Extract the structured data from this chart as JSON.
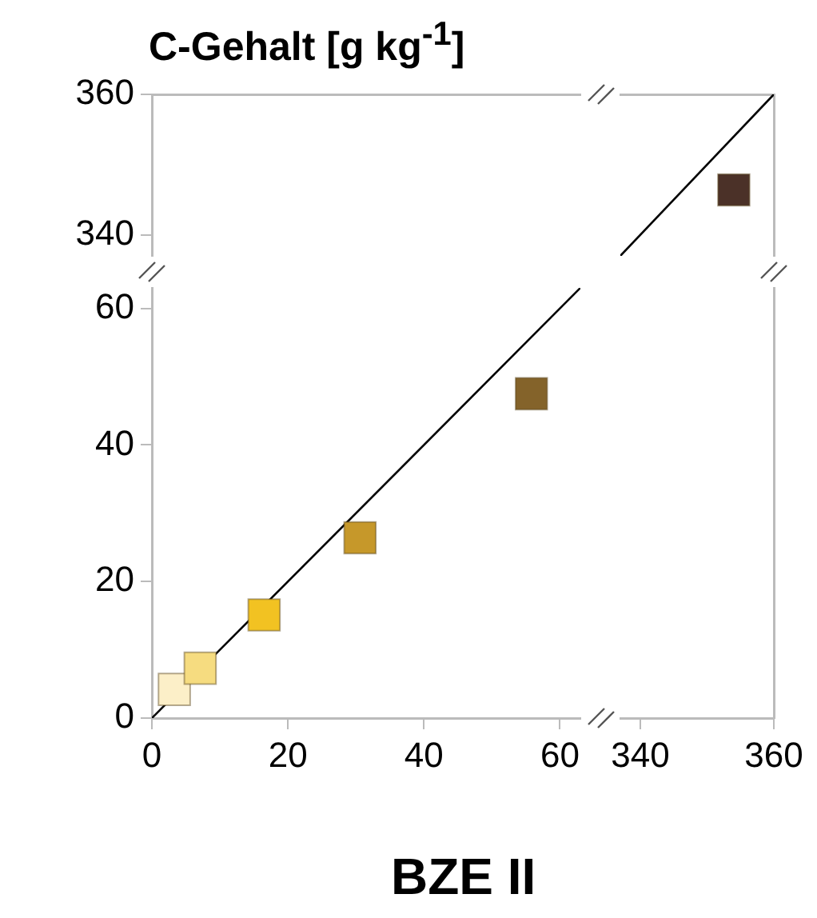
{
  "chart_data": [
    {
      "type": "scatter",
      "ylabel": "C-Gehalt [g kg$^{-1}$]",
      "xlabel": "BZE II",
      "grid": false,
      "xlim": [
        0,
        63
      ],
      "xticks": [
        0,
        20,
        40,
        60
      ],
      "ylim": [
        0,
        63
      ],
      "yticks": [
        0,
        20,
        40,
        60
      ],
      "series": [
        {
          "type": "scatter",
          "marker": "square",
          "x": [
            3.3,
            7.1,
            16.5,
            30.6,
            55.8
          ],
          "values": [
            4.2,
            7.3,
            15.1,
            26.4,
            47.5
          ],
          "colors": [
            "#fcefc8",
            "#f6dc80",
            "#f2c222",
            "#c6982a",
            "#84632a"
          ]
        },
        {
          "type": "line",
          "marker": "none",
          "x": [
            0,
            63
          ],
          "values": [
            0,
            63
          ],
          "color": "#000000"
        }
      ]
    },
    {
      "type": "scatter",
      "grid": false,
      "tick_labels": "y",
      "xlim": [
        0,
        63
      ],
      "ylim": [
        337,
        360
      ],
      "yticks": [
        340,
        360
      ]
    },
    {
      "type": "scatter",
      "grid": false,
      "tick_labels": false,
      "xlim": [
        337,
        360
      ],
      "ylim": [
        337,
        360
      ],
      "series": [
        {
          "type": "scatter",
          "marker": "square",
          "x": [
            354
          ],
          "values": [
            346.4
          ],
          "colors": [
            "#4b3128"
          ]
        },
        {
          "type": "line",
          "marker": "none",
          "x": [
            337,
            360
          ],
          "values": [
            337,
            360
          ],
          "color": "#000000"
        }
      ]
    },
    {
      "type": "scatter",
      "grid": false,
      "tick_labels": "x",
      "xlim": [
        337,
        360
      ],
      "xticks": [
        340,
        360
      ],
      "ylim": [
        0,
        63
      ]
    }
  ]
}
